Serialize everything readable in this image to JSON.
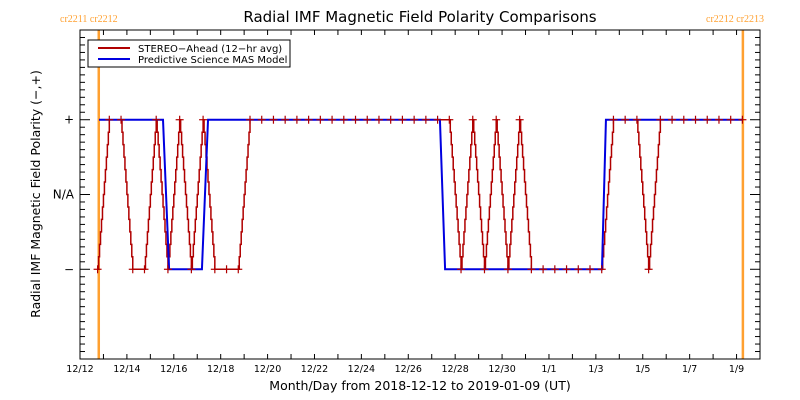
{
  "chart_data": {
    "type": "line",
    "title": "Radial IMF Magnetic Field Polarity Comparisons",
    "xlabel": "Month/Day from 2018-12-12 to 2019-01-09 (UT)",
    "ylabel": "Radial IMF Magnetic Field Polarity (−,+)",
    "x_units": "days since 2018-12-12 00:00 UT",
    "xlim": [
      0,
      29
    ],
    "ylim": [
      -2.2,
      2.2
    ],
    "x_ticks": [
      {
        "value": 0,
        "label": "12/12"
      },
      {
        "value": 2,
        "label": "12/14"
      },
      {
        "value": 4,
        "label": "12/16"
      },
      {
        "value": 6,
        "label": "12/18"
      },
      {
        "value": 8,
        "label": "12/20"
      },
      {
        "value": 10,
        "label": "12/22"
      },
      {
        "value": 12,
        "label": "12/24"
      },
      {
        "value": 14,
        "label": "12/26"
      },
      {
        "value": 16,
        "label": "12/28"
      },
      {
        "value": 18,
        "label": "12/30"
      },
      {
        "value": 20,
        "label": "1/1"
      },
      {
        "value": 22,
        "label": "1/3"
      },
      {
        "value": 24,
        "label": "1/5"
      },
      {
        "value": 26,
        "label": "1/7"
      },
      {
        "value": 28,
        "label": "1/9"
      }
    ],
    "x_minor_tick_step_days": 1,
    "y_ticks": [
      {
        "value": 1,
        "label": "+"
      },
      {
        "value": 0,
        "label": "N/A"
      },
      {
        "value": -1,
        "label": "−"
      }
    ],
    "y_minor_tick_step": 0.1,
    "legend": {
      "placement": "top-left",
      "entries": [
        {
          "name": "STEREO−Ahead (12−hr avg)",
          "color": "#b00000"
        },
        {
          "name": "Predictive Science MAS Model",
          "color": "#0000e0"
        }
      ]
    },
    "series": [
      {
        "name": "STEREO-Ahead (12-hr avg)",
        "color": "#b00000",
        "marker": "plus",
        "x_start": 0.75,
        "x_step": 0.5,
        "values": [
          -1,
          1,
          1,
          -1,
          -1,
          1,
          -1,
          1,
          -1,
          1,
          -1,
          -1,
          -1,
          1,
          1,
          1,
          1,
          1,
          1,
          1,
          1,
          1,
          1,
          1,
          1,
          1,
          1,
          1,
          1,
          1,
          1,
          -1,
          1,
          -1,
          1,
          -1,
          1,
          -1,
          -1,
          -1,
          -1,
          -1,
          -1,
          -1,
          1,
          1,
          1,
          -1,
          1,
          1,
          1,
          1,
          1,
          1,
          1,
          1
        ]
      },
      {
        "name": "Predictive Science MAS Model",
        "color": "#0000e0",
        "marker": "none",
        "points": [
          [
            0.81,
            1
          ],
          [
            3.54,
            1
          ],
          [
            3.8,
            -1
          ],
          [
            5.2,
            -1
          ],
          [
            5.46,
            1
          ],
          [
            15.35,
            1
          ],
          [
            15.57,
            -1
          ],
          [
            22.26,
            -1
          ],
          [
            22.43,
            1
          ],
          [
            28.27,
            1
          ]
        ]
      }
    ],
    "annotations": [
      {
        "type": "vline",
        "x": 0.8,
        "label": "cr2211 cr2212",
        "color": "#ffa030"
      },
      {
        "type": "vline",
        "x": 28.27,
        "label": "cr2212 cr2213",
        "color": "#ffa030"
      }
    ]
  }
}
